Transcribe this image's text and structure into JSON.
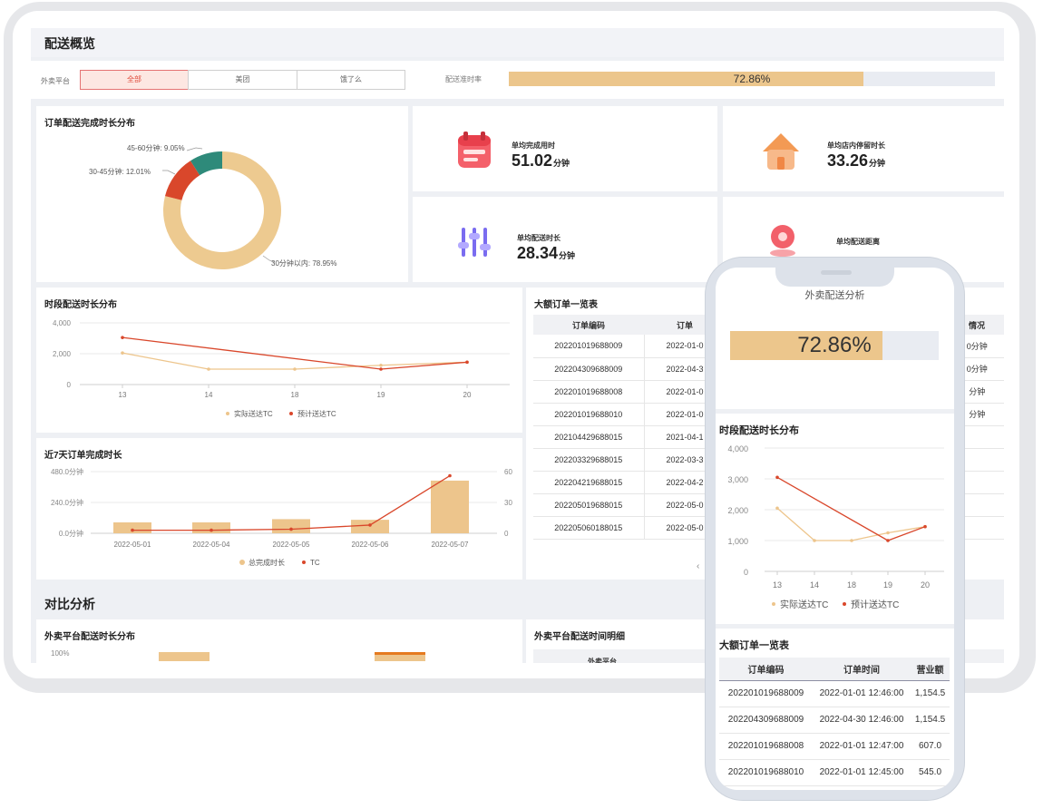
{
  "overview": {
    "title": "配送概览",
    "platform_label": "外卖平台",
    "platform_options": [
      "全部",
      "美团",
      "饿了么"
    ],
    "rate_label": "配送准时率",
    "rate_value": "72.86%",
    "rate_fraction": 0.7286
  },
  "donut": {
    "title": "订单配送完成时长分布",
    "slices": [
      {
        "label": "30分钟以内: 78.95%",
        "value": 78.95,
        "color": "#edca90"
      },
      {
        "label": "30-45分钟: 12.01%",
        "value": 12.01,
        "color": "#d9472b"
      },
      {
        "label": "45-60分钟: 9.05%",
        "value": 9.05,
        "color": "#2e8a7a"
      }
    ]
  },
  "stats": [
    {
      "title": "单均完成用时",
      "value": "51.02",
      "unit": "分钟",
      "icon": "calendar-icon"
    },
    {
      "title": "单均店内停留时长",
      "value": "33.26",
      "unit": "分钟",
      "icon": "house-icon"
    },
    {
      "title": "单均配送时长",
      "value": "28.34",
      "unit": "分钟",
      "icon": "sliders-icon"
    },
    {
      "title": "单均配送距离",
      "value": "",
      "unit": "",
      "icon": "location-pin-icon"
    }
  ],
  "period_chart": {
    "title": "时段配送时长分布",
    "y_ticks": [
      "4,000",
      "2,000",
      "0"
    ],
    "legend": [
      "实际送达TC",
      "预计送达TC"
    ]
  },
  "week_chart": {
    "title": "近7天订单完成时长",
    "y_left_ticks": [
      "480.0分钟",
      "240.0分钟",
      "0.0分钟"
    ],
    "y_right_ticks": [
      "60",
      "30",
      "0"
    ],
    "legend": [
      "总完成时长",
      "TC"
    ]
  },
  "big_orders": {
    "title": "大额订单一览表",
    "headers": [
      "订单编码",
      "订单",
      "情况"
    ],
    "rows": [
      [
        "202201019688009",
        "2022-01-0",
        "0分钟"
      ],
      [
        "202204309688009",
        "2022-04-3",
        "0分钟"
      ],
      [
        "202201019688008",
        "2022-01-0",
        "分钟"
      ],
      [
        "202201019688010",
        "2022-01-0",
        "分钟"
      ],
      [
        "202104429688015",
        "2021-04-1",
        ""
      ],
      [
        "202203329688015",
        "2022-03-3",
        ""
      ],
      [
        "202204219688015",
        "2022-04-2",
        ""
      ],
      [
        "202205019688015",
        "2022-05-0",
        ""
      ],
      [
        "202205060188015",
        "2022-05-0",
        ""
      ]
    ],
    "pager": "‹"
  },
  "compare": {
    "title": "对比分析",
    "left_title": "外卖平台配送时长分布",
    "left_y_tick": "100%",
    "right_title": "外卖平台配送时间明细",
    "right_header": "外卖平台"
  },
  "phone": {
    "title": "外卖配送分析",
    "rate_value": "72.86%",
    "rate_fraction": 0.7286,
    "period_title": "时段配送时长分布",
    "period_y_ticks": [
      "4,000",
      "3,000",
      "2,000",
      "1,000",
      "0"
    ],
    "legend": [
      "实际送达TC",
      "预计送达TC"
    ],
    "table_title": "大额订单一览表",
    "table_headers": [
      "订单编码",
      "订单时间",
      "营业额"
    ],
    "table_rows": [
      [
        "202201019688009",
        "2022-01-01 12:46:00",
        "1,154.5"
      ],
      [
        "202204309688009",
        "2022-04-30 12:46:00",
        "1,154.5"
      ],
      [
        "202201019688008",
        "2022-01-01 12:47:00",
        "607.0"
      ],
      [
        "202201019688010",
        "2022-01-01 12:45:00",
        "545.0"
      ]
    ]
  },
  "chart_data": [
    {
      "type": "pie",
      "title": "订单配送完成时长分布",
      "categories": [
        "30分钟以内",
        "30-45分钟",
        "45-60分钟"
      ],
      "values": [
        78.95,
        12.01,
        9.05
      ]
    },
    {
      "type": "line",
      "title": "时段配送时长分布",
      "x": [
        "13",
        "14",
        "18",
        "19",
        "20"
      ],
      "ylim": [
        0,
        4000
      ],
      "series": [
        {
          "name": "实际送达TC",
          "values": [
            2050,
            1000,
            1000,
            1250,
            1450
          ],
          "color": "#edc58c"
        },
        {
          "name": "预计送达TC",
          "values": [
            3050,
            null,
            null,
            1000,
            1450
          ],
          "color": "#d9472b"
        }
      ]
    },
    {
      "type": "bar",
      "title": "近7天订单完成时长",
      "categories": [
        "2022-05-01",
        "2022-05-04",
        "2022-05-05",
        "2022-05-06",
        "2022-05-07"
      ],
      "series": [
        {
          "name": "总完成时长",
          "values": [
            85,
            85,
            110,
            105,
            410
          ],
          "color": "#edc58c",
          "axis": "left"
        },
        {
          "name": "TC",
          "values": [
            3,
            3,
            4,
            8,
            56
          ],
          "color": "#d9472b",
          "axis": "right"
        }
      ],
      "ylim": [
        0,
        480
      ],
      "y2lim": [
        0,
        60
      ]
    },
    {
      "type": "line",
      "title": "时段配送时长分布",
      "x": [
        "13",
        "14",
        "18",
        "19",
        "20"
      ],
      "ylim": [
        0,
        4000
      ],
      "series": [
        {
          "name": "实际送达TC",
          "values": [
            2050,
            1000,
            1000,
            1250,
            1450
          ],
          "color": "#edc58c"
        },
        {
          "name": "预计送达TC",
          "values": [
            3050,
            null,
            null,
            1000,
            1450
          ],
          "color": "#d9472b"
        }
      ]
    }
  ]
}
